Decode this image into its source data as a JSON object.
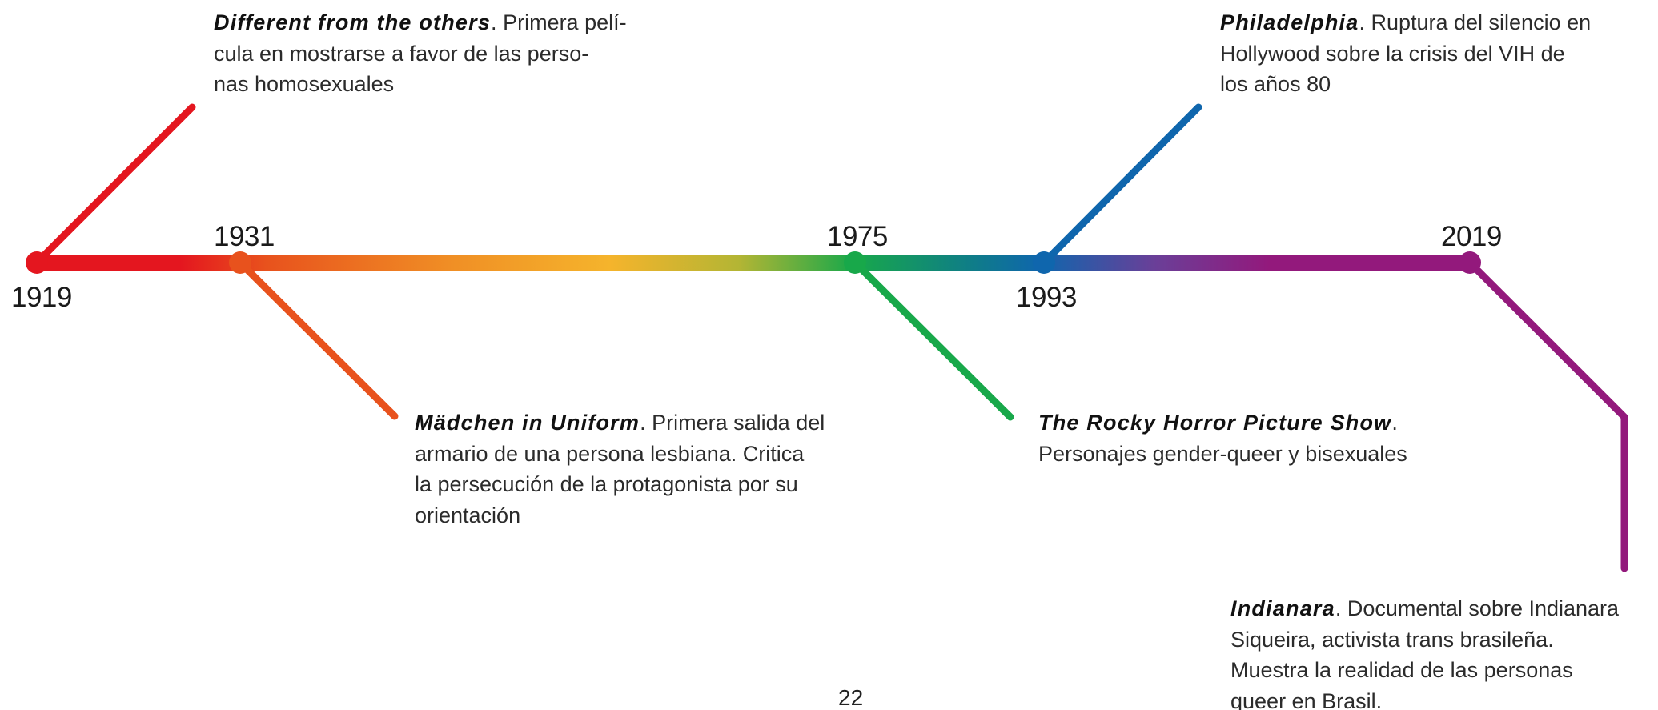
{
  "timeline": {
    "years": {
      "y1919": "1919",
      "y1931": "1931",
      "y1975": "1975",
      "y1993": "1993",
      "y2019": "2019"
    },
    "events": {
      "e1919": {
        "title": "Different from the others",
        "lines": [
          " Primera pelí-",
          "cula en mostrarse a favor de las perso-",
          "nas homosexuales"
        ]
      },
      "e1931": {
        "title": "Mädchen in Uniform",
        "lines": [
          " Primera salida del",
          "armario de una persona lesbiana. Critica",
          "la persecución de la protagonista por su",
          "orientación"
        ]
      },
      "e1975": {
        "title": "The Rocky Horror Picture Show",
        "lines": [
          "",
          "Personajes gender-queer y bisexuales"
        ]
      },
      "e1993": {
        "title": "Philadelphia",
        "lines": [
          " Ruptura del silencio en",
          "Hollywood sobre la crisis del VIH de",
          "los años 80"
        ]
      },
      "e2019": {
        "title": "Indianara",
        "lines": [
          " Documental sobre Indianara",
          "Siqueira, activista trans brasileña.",
          "Muestra la realidad de las personas",
          "queer en Brasil."
        ]
      }
    },
    "colors": {
      "red": "#e4161f",
      "orange": "#e8521d",
      "yellow": "#f5b42c",
      "green": "#18a84a",
      "blue": "#0f66ad",
      "purple": "#93197c"
    }
  },
  "page_number": "22"
}
